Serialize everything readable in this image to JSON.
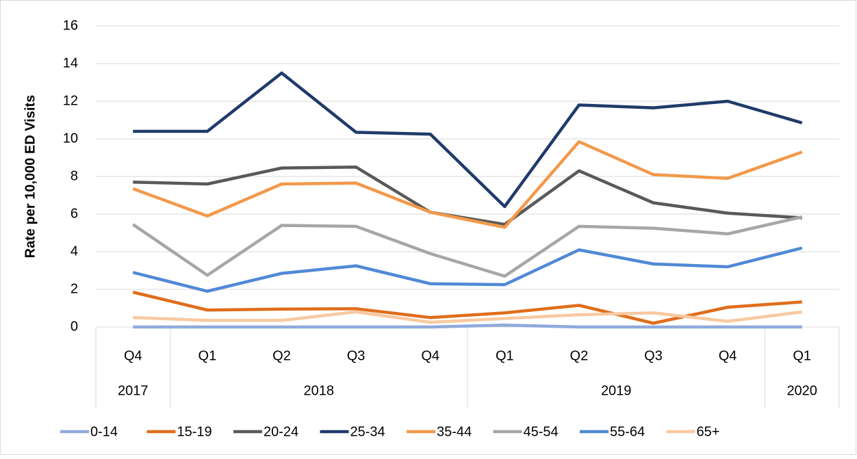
{
  "chart_data": {
    "type": "line",
    "y_label": "Rate per 10,000 ED Visits",
    "categories": [
      "Q4",
      "Q1",
      "Q2",
      "Q3",
      "Q4",
      "Q1",
      "Q2",
      "Q3",
      "Q4",
      "Q1"
    ],
    "x_groups": [
      {
        "label": "2017",
        "count": 1
      },
      {
        "label": "2018",
        "count": 4
      },
      {
        "label": "2019",
        "count": 4
      },
      {
        "label": "2020",
        "count": 1
      }
    ],
    "series": [
      {
        "name": "0-14",
        "color": "#8faadc",
        "values": [
          0,
          0,
          0,
          0,
          0,
          0.1,
          0,
          0,
          0,
          0
        ]
      },
      {
        "name": "15-19",
        "color": "#e06d1b",
        "values": [
          1.85,
          0.9,
          0.95,
          0.97,
          0.5,
          0.75,
          1.15,
          0.2,
          1.05,
          1.33
        ]
      },
      {
        "name": "20-24",
        "color": "#595959",
        "values": [
          7.7,
          7.6,
          8.45,
          8.5,
          6.1,
          5.45,
          8.3,
          6.6,
          6.05,
          5.8
        ]
      },
      {
        "name": "25-34",
        "color": "#1f3b6a",
        "values": [
          10.4,
          10.4,
          13.5,
          10.35,
          10.25,
          6.4,
          11.8,
          11.65,
          12.0,
          10.85
        ]
      },
      {
        "name": "35-44",
        "color": "#f2994a",
        "values": [
          7.35,
          5.9,
          7.6,
          7.65,
          6.1,
          5.3,
          9.85,
          8.1,
          7.9,
          9.3
        ]
      },
      {
        "name": "45-54",
        "color": "#a6a6a6",
        "values": [
          5.45,
          2.75,
          5.4,
          5.35,
          3.9,
          2.7,
          5.35,
          5.25,
          4.95,
          5.85
        ]
      },
      {
        "name": "55-64",
        "color": "#5089d6",
        "values": [
          2.9,
          1.9,
          2.85,
          3.25,
          2.3,
          2.25,
          4.1,
          3.35,
          3.2,
          4.2
        ]
      },
      {
        "name": "65+",
        "color": "#f8c9a0",
        "values": [
          0.5,
          0.35,
          0.35,
          0.8,
          0.25,
          0.45,
          0.65,
          0.75,
          0.3,
          0.8
        ]
      }
    ],
    "ylim": [
      0,
      16
    ],
    "yticks": [
      0,
      2,
      4,
      6,
      8,
      10,
      12,
      14,
      16
    ],
    "grid": true
  }
}
